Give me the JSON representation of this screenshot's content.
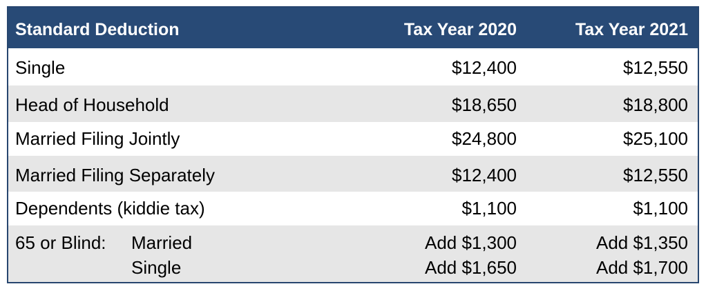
{
  "table": {
    "headers": [
      "Standard Deduction",
      "Tax Year 2020",
      "Tax Year 2021"
    ],
    "rows": [
      {
        "label": "Single",
        "y2020": "$12,400",
        "y2021": "$12,550"
      },
      {
        "label": "Head of Household",
        "y2020": "$18,650",
        "y2021": "$18,800"
      },
      {
        "label": "Married Filing Jointly",
        "y2020": "$24,800",
        "y2021": "$25,100"
      },
      {
        "label": "Married Filing Separately",
        "y2020": "$12,400",
        "y2021": "$12,550"
      },
      {
        "label": "Dependents (kiddie tax)",
        "y2020": "$1,100",
        "y2021": "$1,100"
      }
    ],
    "blind_row": {
      "label": "65 or Blind:",
      "sub_rows": [
        {
          "label": "Married",
          "y2020": "Add $1,300",
          "y2021": "Add $1,350"
        },
        {
          "label": "Single",
          "y2020": "Add $1,650",
          "y2021": "Add $1,700"
        }
      ]
    }
  },
  "colors": {
    "header_bg": "#284a76",
    "header_text": "#ffffff",
    "stripe": "#e6e6e6",
    "border": "#27466f"
  }
}
